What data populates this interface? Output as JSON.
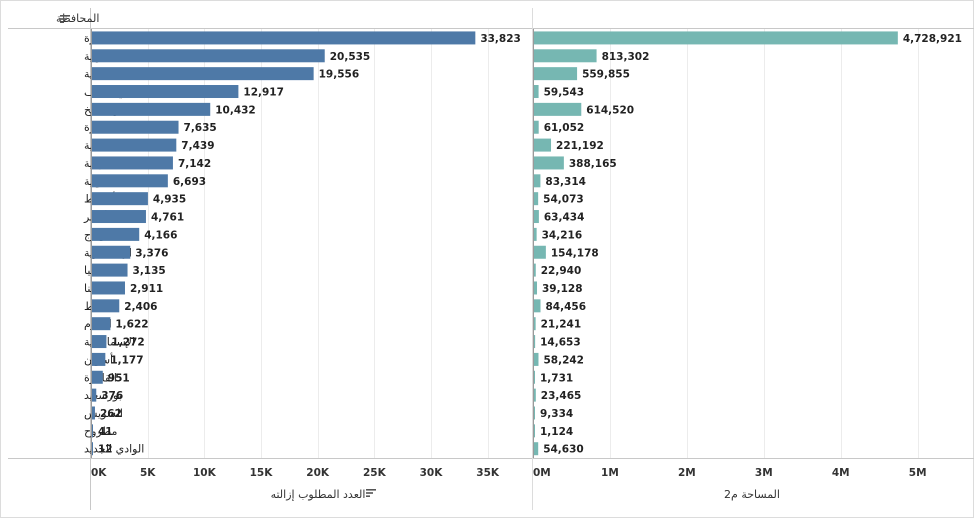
{
  "chart_data": {
    "type": "bar",
    "orientation": "horizontal",
    "row_header": "المحافظة",
    "categories": [
      "البحيرة",
      "الغربية",
      "المنوفية",
      "بني سويف",
      "كفر الشيخ",
      "الجيزة",
      "الشرقية",
      "الدقهلية",
      "القليوبية",
      "أسيوط",
      "الأقصر",
      "سوهاج",
      "الإسكندرية",
      "المنيا",
      "قنا",
      "دمياط",
      "الفيوم",
      "الإسماعيلية",
      "أسوان",
      "القاهرة",
      "بورسعيد",
      "السويس",
      "مطروح",
      "الوادي الجديد"
    ],
    "panels": [
      {
        "title": "العدد المطلوب إزالته",
        "color": "#4e79a7",
        "xlim": [
          0,
          37500
        ],
        "ticks": [
          0,
          5000,
          10000,
          15000,
          20000,
          25000,
          30000,
          35000
        ],
        "tick_labels": [
          "0K",
          "5K",
          "10K",
          "15K",
          "20K",
          "25K",
          "30K",
          "35K"
        ],
        "values": [
          33823,
          20535,
          19556,
          12917,
          10432,
          7635,
          7439,
          7142,
          6693,
          4935,
          4761,
          4166,
          3376,
          3135,
          2911,
          2406,
          1622,
          1272,
          1177,
          951,
          376,
          262,
          41,
          12
        ],
        "labels": [
          "33,823",
          "20,535",
          "19,556",
          "12,917",
          "10,432",
          "7,635",
          "7,439",
          "7,142",
          "6,693",
          "4,935",
          "4,761",
          "4,166",
          "3,376",
          "3,135",
          "2,911",
          "2,406",
          "1,622",
          "1,272",
          "1,177",
          "951",
          "376",
          "262",
          "41",
          "12"
        ]
      },
      {
        "title": "المساحة م2",
        "color": "#76b7b2",
        "xlim": [
          0,
          5550000
        ],
        "ticks": [
          0,
          1000000,
          2000000,
          3000000,
          4000000,
          5000000
        ],
        "tick_labels": [
          "0M",
          "1M",
          "2M",
          "3M",
          "4M",
          "5M"
        ],
        "values": [
          4728921,
          813302,
          559855,
          59543,
          614520,
          61052,
          221192,
          388165,
          83314,
          54073,
          63434,
          34216,
          154178,
          22940,
          39128,
          84456,
          21241,
          14653,
          58242,
          1731,
          23465,
          9334,
          1124,
          54630
        ],
        "labels": [
          "4,728,921",
          "813,302",
          "559,855",
          "59,543",
          "614,520",
          "61,052",
          "221,192",
          "388,165",
          "83,314",
          "54,073",
          "63,434",
          "34,216",
          "154,178",
          "22,940",
          "39,128",
          "84,456",
          "21,241",
          "14,653",
          "58,242",
          "1,731",
          "23,465",
          "9,334",
          "1,124",
          "54,630"
        ]
      }
    ],
    "grid": true,
    "sort_icon": "sort-lines-icon"
  }
}
